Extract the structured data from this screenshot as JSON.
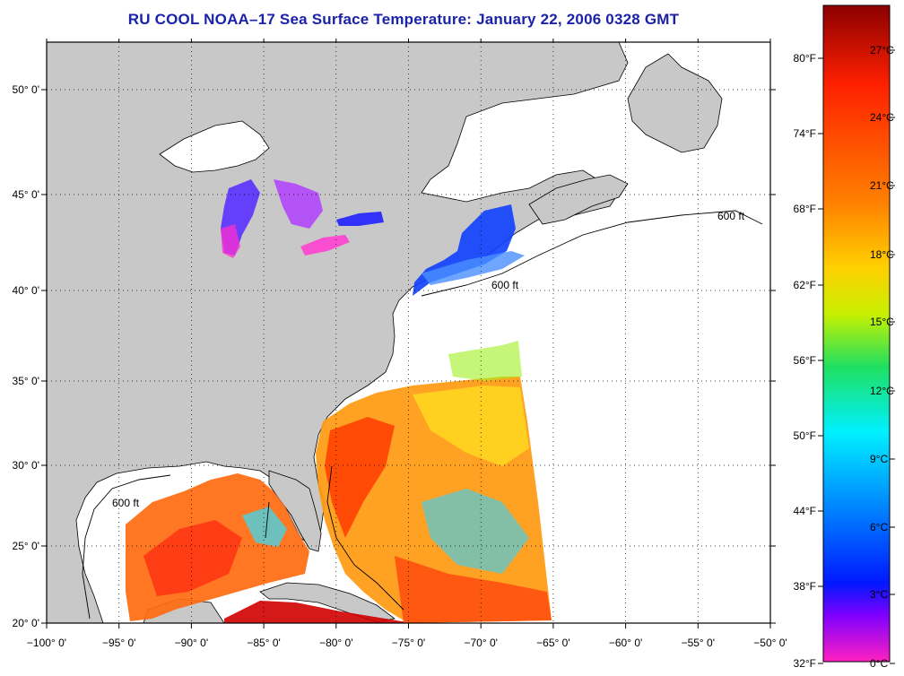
{
  "title": "RU COOL  NOAA–17  Sea Surface Temperature:  January 22, 2006 0328 GMT",
  "map": {
    "lon_ticks": [
      "−100° 0'",
      "−95° 0'",
      "−90° 0'",
      "−85° 0'",
      "−80° 0'",
      "−75° 0'",
      "−70° 0'",
      "−65° 0'",
      "−60° 0'",
      "−55° 0'",
      "−50° 0'"
    ],
    "lat_ticks": [
      "50° 0'",
      "45° 0'",
      "40° 0'",
      "35° 0'",
      "30° 0'",
      "25° 0'",
      "20° 0'"
    ],
    "contour_labels": [
      "600 ft",
      "600 ft",
      "600 ft"
    ],
    "colors": {
      "land": "#c8c8c8",
      "water": "#ffffff",
      "frame": "#000000"
    }
  },
  "colorbar": {
    "fahrenheit": [
      "80°F",
      "74°F",
      "68°F",
      "62°F",
      "56°F",
      "50°F",
      "44°F",
      "38°F",
      "32°F"
    ],
    "celsius": [
      "27°C",
      "24°C",
      "21°C",
      "18°C",
      "15°C",
      "12°C",
      "9°C",
      "6°C",
      "3°C",
      "0°C"
    ],
    "stops": [
      "#8b0000",
      "#ff2000",
      "#ff8000",
      "#ffd000",
      "#c8f000",
      "#20e060",
      "#00f0ff",
      "#0080ff",
      "#0018ff",
      "#8000ff",
      "#ff20c0"
    ]
  }
}
